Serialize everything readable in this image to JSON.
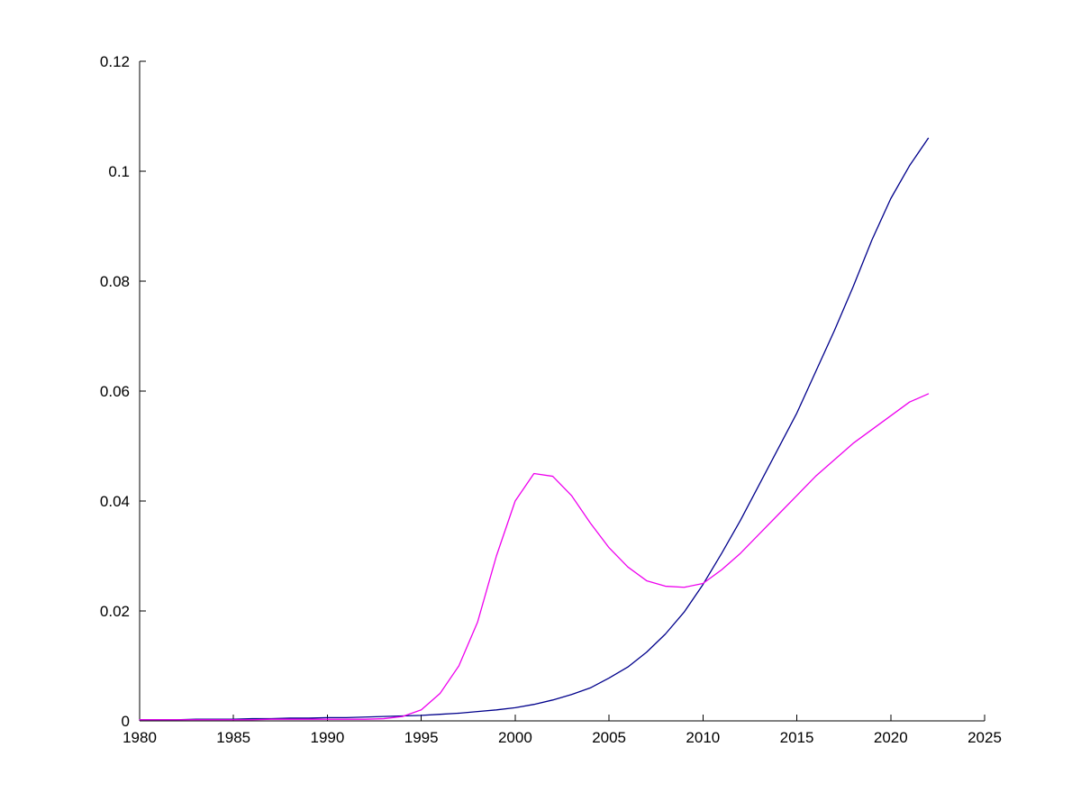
{
  "chart_data": {
    "type": "line",
    "title": "",
    "xlabel": "",
    "ylabel": "",
    "xlim": [
      1980,
      2025
    ],
    "ylim": [
      0,
      0.12
    ],
    "grid": false,
    "legend_position": "none",
    "x_ticks": [
      1980,
      1985,
      1990,
      1995,
      2000,
      2005,
      2010,
      2015,
      2020,
      2025
    ],
    "x_tick_labels": [
      "1980",
      "1985",
      "1990",
      "1995",
      "2000",
      "2005",
      "2010",
      "2015",
      "2020",
      "2025"
    ],
    "y_ticks": [
      0,
      0.02,
      0.04,
      0.06,
      0.08,
      0.1,
      0.12
    ],
    "y_tick_labels": [
      "0",
      "0.02",
      "0.04",
      "0.06",
      "0.08",
      "0.1",
      "0.12"
    ],
    "x": [
      1980,
      1981,
      1982,
      1983,
      1984,
      1985,
      1986,
      1987,
      1988,
      1989,
      1990,
      1991,
      1992,
      1993,
      1994,
      1995,
      1996,
      1997,
      1998,
      1999,
      2000,
      2001,
      2002,
      2003,
      2004,
      2005,
      2006,
      2007,
      2008,
      2009,
      2010,
      2011,
      2012,
      2013,
      2014,
      2015,
      2016,
      2017,
      2018,
      2019,
      2020,
      2021,
      2022
    ],
    "series": [
      {
        "name": "dark-blue-series",
        "color": "#00008B",
        "values": [
          0.0002,
          0.0002,
          0.0002,
          0.0003,
          0.0003,
          0.0003,
          0.0004,
          0.0004,
          0.0005,
          0.0005,
          0.0006,
          0.0006,
          0.0007,
          0.0008,
          0.0009,
          0.001,
          0.0012,
          0.0014,
          0.0017,
          0.002,
          0.0024,
          0.003,
          0.0038,
          0.0048,
          0.006,
          0.0078,
          0.0098,
          0.0125,
          0.0158,
          0.0198,
          0.0248,
          0.0305,
          0.0365,
          0.043,
          0.0495,
          0.056,
          0.0635,
          0.071,
          0.079,
          0.0875,
          0.095,
          0.101,
          0.106
        ]
      },
      {
        "name": "magenta-series",
        "color": "#EE00EE",
        "values": [
          0.0002,
          0.0002,
          0.0002,
          0.0002,
          0.0002,
          0.0002,
          0.0002,
          0.0003,
          0.0003,
          0.0003,
          0.0003,
          0.0003,
          0.0003,
          0.0004,
          0.0008,
          0.002,
          0.005,
          0.01,
          0.018,
          0.03,
          0.04,
          0.045,
          0.0445,
          0.041,
          0.036,
          0.0315,
          0.028,
          0.0255,
          0.0245,
          0.0243,
          0.025,
          0.0275,
          0.0305,
          0.034,
          0.0375,
          0.041,
          0.0445,
          0.0475,
          0.0505,
          0.053,
          0.0555,
          0.058,
          0.0595
        ]
      }
    ]
  }
}
